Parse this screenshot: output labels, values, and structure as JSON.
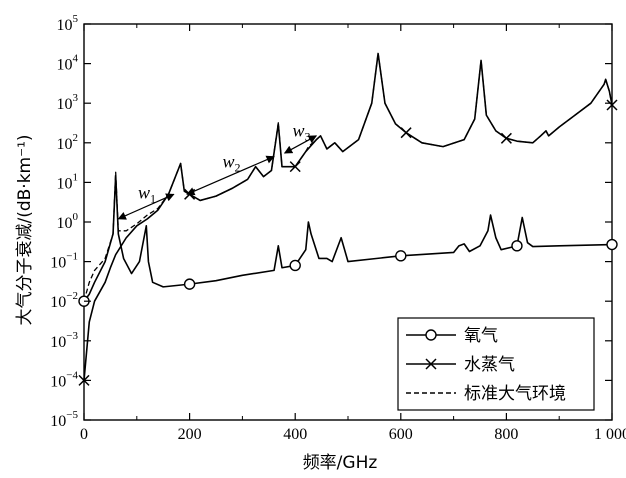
{
  "chart_data": {
    "type": "line",
    "title": "",
    "xlabel": "频率/GHz",
    "ylabel": "大气分子衰减/(dB·km⁻¹)",
    "xlim": [
      0,
      1000
    ],
    "ylim": [
      1e-05,
      100000.0
    ],
    "yscale": "log",
    "grid": false,
    "legend_position": "bottom-right",
    "x_ticks": [
      0,
      200,
      400,
      600,
      800,
      1000
    ],
    "x_tick_labels": [
      "0",
      "200",
      "400",
      "600",
      "800",
      "1 000"
    ],
    "y_tick_exponents": [
      -5,
      -4,
      -3,
      -2,
      -1,
      0,
      1,
      2,
      3,
      4,
      5
    ],
    "series": [
      {
        "name": "氧气",
        "marker": "circle",
        "line": "solid",
        "points": [
          [
            0,
            0.01
          ],
          [
            10,
            0.015
          ],
          [
            20,
            0.03
          ],
          [
            40,
            0.1
          ],
          [
            55,
            0.5
          ],
          [
            60,
            15
          ],
          [
            65,
            0.5
          ],
          [
            75,
            0.12
          ],
          [
            90,
            0.05
          ],
          [
            105,
            0.1
          ],
          [
            118,
            0.8
          ],
          [
            122,
            0.1
          ],
          [
            130,
            0.03
          ],
          [
            150,
            0.023
          ],
          [
            200,
            0.027
          ],
          [
            250,
            0.033
          ],
          [
            300,
            0.045
          ],
          [
            360,
            0.06
          ],
          [
            368,
            0.25
          ],
          [
            375,
            0.07
          ],
          [
            400,
            0.08
          ],
          [
            420,
            0.2
          ],
          [
            425,
            1.0
          ],
          [
            430,
            0.5
          ],
          [
            445,
            0.12
          ],
          [
            460,
            0.12
          ],
          [
            470,
            0.1
          ],
          [
            487,
            0.4
          ],
          [
            500,
            0.1
          ],
          [
            600,
            0.14
          ],
          [
            700,
            0.17
          ],
          [
            710,
            0.25
          ],
          [
            720,
            0.28
          ],
          [
            730,
            0.18
          ],
          [
            750,
            0.25
          ],
          [
            765,
            0.6
          ],
          [
            770,
            1.5
          ],
          [
            780,
            0.4
          ],
          [
            790,
            0.2
          ],
          [
            820,
            0.25
          ],
          [
            830,
            1.3
          ],
          [
            840,
            0.3
          ],
          [
            850,
            0.24
          ],
          [
            900,
            0.25
          ],
          [
            1000,
            0.27
          ]
        ],
        "marker_points": [
          [
            0,
            0.01
          ],
          [
            200,
            0.027
          ],
          [
            400,
            0.08
          ],
          [
            600,
            0.14
          ],
          [
            820,
            0.25
          ],
          [
            1000,
            0.27
          ]
        ]
      },
      {
        "name": "水蒸气",
        "marker": "x",
        "line": "solid",
        "points": [
          [
            0,
            0.0001
          ],
          [
            10,
            0.003
          ],
          [
            20,
            0.01
          ],
          [
            40,
            0.03
          ],
          [
            50,
            0.07
          ],
          [
            60,
            0.15
          ],
          [
            80,
            0.4
          ],
          [
            100,
            0.8
          ],
          [
            120,
            1.2
          ],
          [
            140,
            2
          ],
          [
            160,
            5
          ],
          [
            183,
            30
          ],
          [
            190,
            6
          ],
          [
            200,
            5
          ],
          [
            220,
            3.5
          ],
          [
            250,
            4.5
          ],
          [
            280,
            7
          ],
          [
            310,
            12
          ],
          [
            325,
            25
          ],
          [
            340,
            14
          ],
          [
            355,
            20
          ],
          [
            368,
            300
          ],
          [
            375,
            25
          ],
          [
            400,
            25
          ],
          [
            420,
            60
          ],
          [
            440,
            120
          ],
          [
            448,
            150
          ],
          [
            460,
            70
          ],
          [
            475,
            100
          ],
          [
            490,
            60
          ],
          [
            520,
            120
          ],
          [
            545,
            1000
          ],
          [
            557,
            18000
          ],
          [
            570,
            1000
          ],
          [
            590,
            300
          ],
          [
            610,
            180
          ],
          [
            640,
            100
          ],
          [
            680,
            80
          ],
          [
            720,
            120
          ],
          [
            740,
            400
          ],
          [
            752,
            12000
          ],
          [
            762,
            500
          ],
          [
            780,
            200
          ],
          [
            800,
            130
          ],
          [
            820,
            110
          ],
          [
            850,
            100
          ],
          [
            865,
            150
          ],
          [
            875,
            200
          ],
          [
            880,
            150
          ],
          [
            900,
            250
          ],
          [
            930,
            500
          ],
          [
            960,
            1000
          ],
          [
            985,
            3000
          ],
          [
            988,
            4000
          ],
          [
            995,
            2000
          ],
          [
            1000,
            900
          ]
        ],
        "marker_points": [
          [
            0,
            0.0001
          ],
          [
            200,
            5
          ],
          [
            400,
            25
          ],
          [
            610,
            180
          ],
          [
            800,
            130
          ],
          [
            1000,
            900
          ]
        ]
      },
      {
        "name": "标准大气环境",
        "marker": "none",
        "line": "dashed",
        "points": [
          [
            0,
            0.01
          ],
          [
            10,
            0.03
          ],
          [
            20,
            0.06
          ],
          [
            40,
            0.12
          ],
          [
            55,
            0.5
          ],
          [
            60,
            18
          ],
          [
            65,
            0.6
          ],
          [
            80,
            0.6
          ],
          [
            100,
            0.9
          ],
          [
            120,
            1.5
          ],
          [
            140,
            2.2
          ],
          [
            160,
            5
          ],
          [
            183,
            30
          ],
          [
            190,
            6
          ],
          [
            200,
            5
          ],
          [
            220,
            3.5
          ],
          [
            250,
            4.5
          ],
          [
            280,
            7
          ],
          [
            310,
            12
          ],
          [
            325,
            25
          ],
          [
            340,
            14
          ],
          [
            355,
            20
          ],
          [
            368,
            320
          ],
          [
            375,
            25
          ],
          [
            400,
            25
          ],
          [
            420,
            60
          ],
          [
            425,
            80
          ],
          [
            440,
            120
          ],
          [
            448,
            150
          ],
          [
            460,
            70
          ],
          [
            475,
            100
          ],
          [
            490,
            60
          ],
          [
            520,
            120
          ],
          [
            545,
            1000
          ],
          [
            557,
            18000
          ],
          [
            570,
            1000
          ],
          [
            590,
            300
          ],
          [
            610,
            180
          ],
          [
            640,
            100
          ],
          [
            680,
            80
          ],
          [
            720,
            120
          ],
          [
            740,
            400
          ],
          [
            752,
            12000
          ],
          [
            762,
            500
          ],
          [
            780,
            200
          ],
          [
            800,
            130
          ],
          [
            820,
            110
          ],
          [
            850,
            100
          ],
          [
            865,
            150
          ],
          [
            875,
            200
          ],
          [
            880,
            150
          ],
          [
            900,
            250
          ],
          [
            930,
            500
          ],
          [
            960,
            1000
          ],
          [
            985,
            3000
          ],
          [
            988,
            4000
          ],
          [
            995,
            2000
          ],
          [
            1000,
            900
          ]
        ]
      }
    ],
    "annotations": [
      {
        "label": "w",
        "sub": "1",
        "from": [
          65,
          1.2
        ],
        "to": [
          170,
          5
        ]
      },
      {
        "label": "w",
        "sub": "2",
        "from": [
          195,
          5
        ],
        "to": [
          360,
          45
        ]
      },
      {
        "label": "w",
        "sub": "3",
        "from": [
          380,
          55
        ],
        "to": [
          440,
          150
        ]
      }
    ]
  }
}
